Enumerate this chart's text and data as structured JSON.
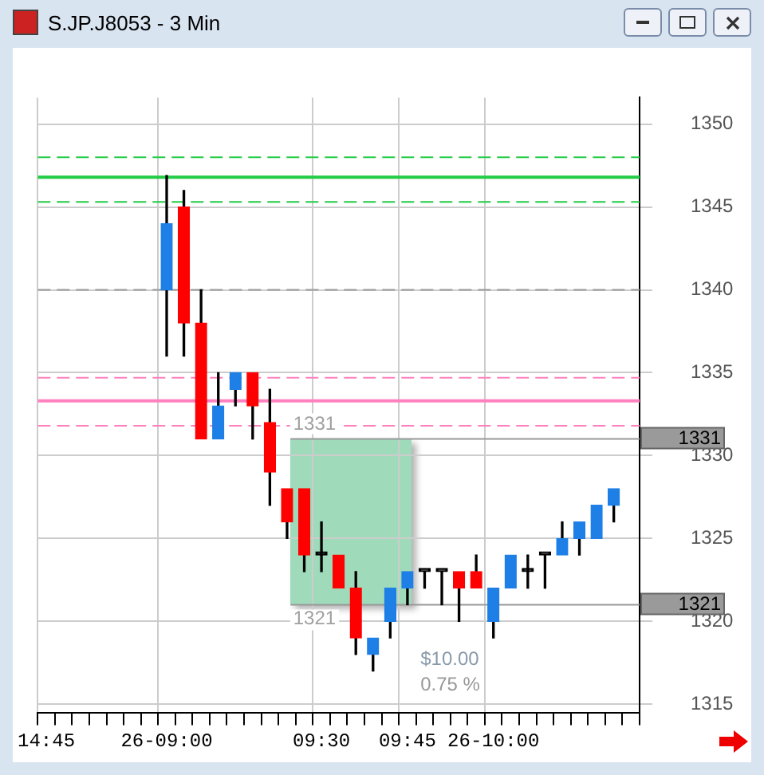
{
  "chart_data": {
    "type": "candlestick",
    "title": "S.JP.J8053 - 3 Min",
    "categories": [
      "14:45",
      null,
      null,
      null,
      null,
      null,
      null,
      "26-09:00",
      null,
      null,
      null,
      null,
      null,
      null,
      null,
      null,
      "09:30",
      null,
      null,
      null,
      null,
      "09:45",
      null,
      null,
      null,
      null,
      "26-10:00",
      null,
      null,
      null,
      null,
      null,
      null,
      null,
      null
    ],
    "ohlc": [
      null,
      null,
      null,
      null,
      null,
      null,
      null,
      [
        1340,
        1346.9,
        1336,
        1344
      ],
      [
        1345,
        1346,
        1336,
        1338
      ],
      [
        1338,
        1340,
        1331,
        1331
      ],
      [
        1331,
        1335,
        1331,
        1333
      ],
      [
        1334,
        1335,
        1333,
        1335
      ],
      [
        1335,
        1335,
        1331,
        1333
      ],
      [
        1332,
        1334,
        1327,
        1329
      ],
      [
        1328,
        1328,
        1325,
        1326
      ],
      [
        1328,
        1328,
        1323,
        1324
      ],
      [
        1324,
        1326,
        1323,
        1324
      ],
      [
        1324,
        1324,
        1322,
        1322
      ],
      [
        1322,
        1323,
        1318,
        1319
      ],
      [
        1318,
        1319,
        1317,
        1319
      ],
      [
        1320,
        1322,
        1319,
        1322
      ],
      [
        1322,
        1323,
        1321,
        1323
      ],
      [
        1323,
        1323,
        1322,
        1323
      ],
      [
        1323,
        1323,
        1321,
        1323
      ],
      [
        1323,
        1323,
        1320,
        1322
      ],
      [
        1323,
        1324,
        1322,
        1322
      ],
      [
        1320,
        1322,
        1319,
        1322
      ],
      [
        1322,
        1324,
        1322,
        1324
      ],
      [
        1323,
        1324,
        1322,
        1323
      ],
      [
        1324,
        1324,
        1322,
        1324
      ],
      [
        1324,
        1326,
        1324,
        1325
      ],
      [
        1325,
        1326,
        1324,
        1326
      ],
      [
        1325,
        1327,
        1325,
        1327
      ],
      [
        1327,
        1328,
        1326,
        1328
      ],
      null
    ],
    "colors": [
      null,
      null,
      null,
      null,
      null,
      null,
      null,
      "#1e7fe6",
      "#ff0000",
      "#ff0000",
      "#1e7fe6",
      "#1e7fe6",
      "#ff0000",
      "#ff0000",
      "#ff0000",
      "#ff0000",
      "#000000",
      "#ff0000",
      "#ff0000",
      "#1e7fe6",
      "#1e7fe6",
      "#1e7fe6",
      "#000000",
      "#000000",
      "#ff0000",
      "#ff0000",
      "#1e7fe6",
      "#1e7fe6",
      "#000000",
      "#000000",
      "#1e7fe6",
      "#1e7fe6",
      "#1e7fe6",
      "#1e7fe6",
      null
    ],
    "ylim": [
      1314.5,
      1351.6
    ],
    "yticks": [
      1315,
      1320,
      1325,
      1330,
      1335,
      1340,
      1345,
      1350
    ],
    "grid": true,
    "ref_lines": [
      {
        "axis": "y",
        "value": 1348,
        "color": "#22cc44",
        "line_style": "dashed"
      },
      {
        "axis": "y",
        "value": 1346.8,
        "color": "#22cc44",
        "line_style": "solid"
      },
      {
        "axis": "y",
        "value": 1345.3,
        "color": "#22cc44",
        "line_style": "dashed"
      },
      {
        "axis": "y",
        "value": 1340,
        "color": "#999999",
        "line_style": "dashed"
      },
      {
        "axis": "y",
        "value": 1334.7,
        "color": "#ff80c0",
        "line_style": "dashed"
      },
      {
        "axis": "y",
        "value": 1333.3,
        "color": "#ff80c0",
        "line_style": "solid"
      },
      {
        "axis": "y",
        "value": 1331.8,
        "color": "#ff80c0",
        "line_style": "dashed"
      },
      {
        "axis": "y",
        "value": 1331,
        "label": "1331",
        "color": "#999999",
        "line_style": "solid"
      },
      {
        "axis": "y",
        "value": 1321,
        "label": "1321",
        "color": "#999999",
        "line_style": "solid"
      }
    ],
    "annotations": [
      {
        "text": "1331",
        "y": 1331
      },
      {
        "text": "1321",
        "y": 1321
      },
      "$10.00",
      "0.75 %"
    ]
  }
}
